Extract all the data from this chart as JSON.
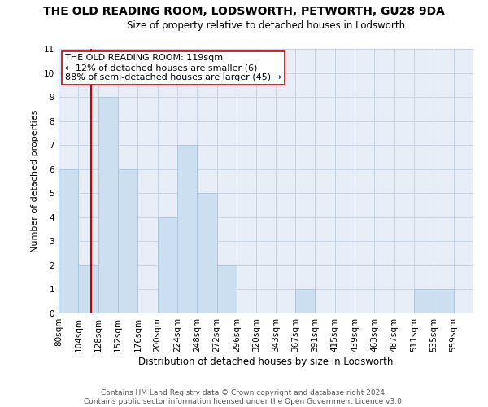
{
  "title": "THE OLD READING ROOM, LODSWORTH, PETWORTH, GU28 9DA",
  "subtitle": "Size of property relative to detached houses in Lodsworth",
  "xlabel": "Distribution of detached houses by size in Lodsworth",
  "ylabel": "Number of detached properties",
  "bin_labels": [
    "80sqm",
    "104sqm",
    "128sqm",
    "152sqm",
    "176sqm",
    "200sqm",
    "224sqm",
    "248sqm",
    "272sqm",
    "296sqm",
    "320sqm",
    "343sqm",
    "367sqm",
    "391sqm",
    "415sqm",
    "439sqm",
    "463sqm",
    "487sqm",
    "511sqm",
    "535sqm",
    "559sqm"
  ],
  "bin_edges": [
    80,
    104,
    128,
    152,
    176,
    200,
    224,
    248,
    272,
    296,
    320,
    343,
    367,
    391,
    415,
    439,
    463,
    487,
    511,
    535,
    559,
    583
  ],
  "counts": [
    6,
    2,
    9,
    6,
    0,
    4,
    7,
    5,
    2,
    0,
    0,
    0,
    1,
    0,
    0,
    0,
    0,
    0,
    1,
    1,
    0
  ],
  "bar_color": "#ccdff0",
  "bar_edge_color": "#a8c4dc",
  "property_line_x": 119,
  "property_line_color": "#cc0000",
  "ylim": [
    0,
    11
  ],
  "yticks": [
    0,
    1,
    2,
    3,
    4,
    5,
    6,
    7,
    8,
    9,
    10,
    11
  ],
  "annotation_text": "THE OLD READING ROOM: 119sqm\n← 12% of detached houses are smaller (6)\n88% of semi-detached houses are larger (45) →",
  "footer_line1": "Contains HM Land Registry data © Crown copyright and database right 2024.",
  "footer_line2": "Contains public sector information licensed under the Open Government Licence v3.0.",
  "grid_color": "#c8d4e8",
  "background_color": "#e8eef8",
  "title_fontsize": 10,
  "subtitle_fontsize": 8.5,
  "xlabel_fontsize": 8.5,
  "ylabel_fontsize": 8,
  "tick_fontsize": 7.5,
  "annotation_fontsize": 8,
  "footer_fontsize": 6.5
}
